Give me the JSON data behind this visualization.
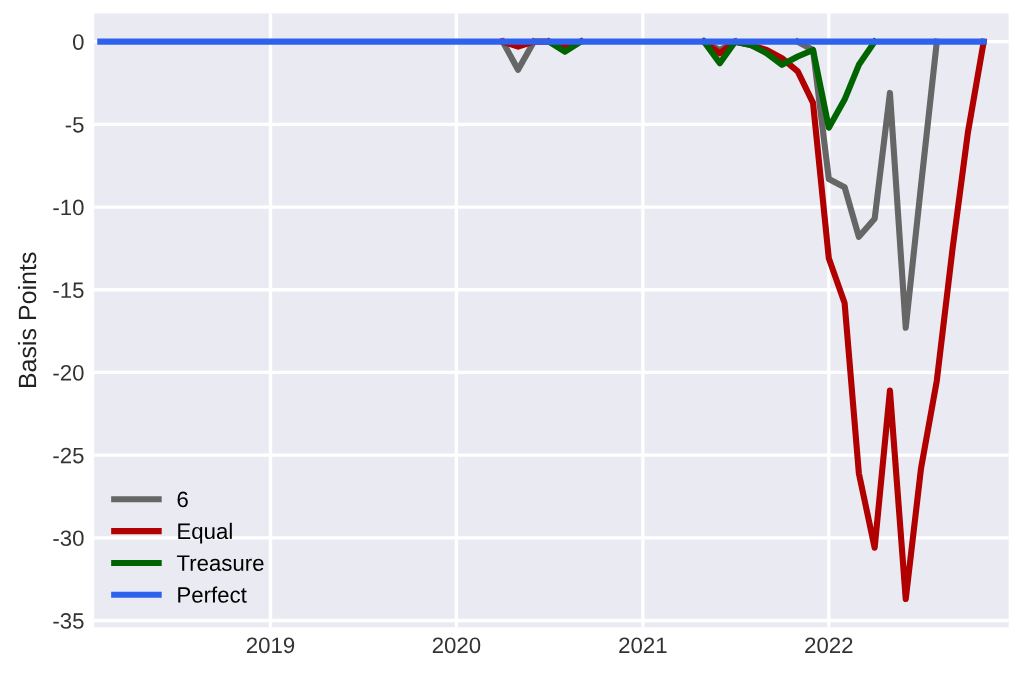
{
  "chart_data": {
    "type": "line",
    "ylabel": "Basis Points",
    "x": [
      "2018-02",
      "2018-03",
      "2018-04",
      "2018-05",
      "2018-06",
      "2018-07",
      "2018-08",
      "2018-09",
      "2018-10",
      "2018-11",
      "2018-12",
      "2019-01",
      "2019-02",
      "2019-03",
      "2019-04",
      "2019-05",
      "2019-06",
      "2019-07",
      "2019-08",
      "2019-09",
      "2019-10",
      "2019-11",
      "2019-12",
      "2020-01",
      "2020-02",
      "2020-03",
      "2020-04",
      "2020-05",
      "2020-06",
      "2020-07",
      "2020-08",
      "2020-09",
      "2020-10",
      "2020-11",
      "2020-12",
      "2021-01",
      "2021-02",
      "2021-03",
      "2021-04",
      "2021-05",
      "2021-06",
      "2021-07",
      "2021-08",
      "2021-09",
      "2021-10",
      "2021-11",
      "2021-12",
      "2022-01",
      "2022-02",
      "2022-03",
      "2022-04",
      "2022-05",
      "2022-06",
      "2022-07",
      "2022-08",
      "2022-09",
      "2022-10",
      "2022-11"
    ],
    "series": [
      {
        "name": "6",
        "color": "#666666",
        "values": [
          null,
          null,
          null,
          null,
          null,
          null,
          null,
          null,
          null,
          null,
          null,
          null,
          null,
          null,
          null,
          null,
          null,
          null,
          null,
          null,
          null,
          null,
          null,
          null,
          null,
          null,
          0,
          -1.7,
          0,
          null,
          null,
          null,
          null,
          null,
          null,
          null,
          null,
          null,
          null,
          0,
          -0.5,
          0,
          null,
          null,
          null,
          0,
          -0.5,
          -8.3,
          -8.8,
          -11.8,
          -10.7,
          -3.1,
          -17.3,
          -8.7,
          0,
          null,
          null,
          null
        ]
      },
      {
        "name": "Equal",
        "color": "#b00000",
        "values": [
          null,
          null,
          null,
          null,
          null,
          null,
          null,
          null,
          null,
          null,
          null,
          null,
          null,
          null,
          null,
          null,
          null,
          null,
          null,
          null,
          null,
          null,
          null,
          null,
          null,
          null,
          0,
          -0.3,
          0,
          0,
          -0.3,
          0,
          null,
          null,
          null,
          null,
          null,
          null,
          null,
          0,
          -0.7,
          0,
          -0.2,
          -0.5,
          -1.0,
          -1.8,
          -3.7,
          -13.1,
          -15.8,
          -26.1,
          -30.6,
          -21.1,
          -33.7,
          -25.8,
          -20.5,
          -12.5,
          -5.5,
          0
        ]
      },
      {
        "name": "Treasure",
        "color": "#006400",
        "values": [
          null,
          null,
          null,
          null,
          null,
          null,
          null,
          null,
          null,
          null,
          null,
          null,
          null,
          null,
          null,
          null,
          null,
          null,
          null,
          null,
          null,
          null,
          null,
          null,
          null,
          null,
          null,
          null,
          null,
          0,
          -0.6,
          0,
          null,
          null,
          null,
          null,
          null,
          null,
          null,
          0,
          -1.3,
          0,
          -0.2,
          -0.7,
          -1.4,
          -0.9,
          -0.5,
          -5.2,
          -3.5,
          -1.4,
          0,
          null,
          null,
          null,
          null,
          null,
          null,
          null
        ]
      },
      {
        "name": "Perfect",
        "color": "#2e62ee",
        "values": [
          0,
          0,
          0,
          0,
          0,
          0,
          0,
          0,
          0,
          0,
          0,
          0,
          0,
          0,
          0,
          0,
          0,
          0,
          0,
          0,
          0,
          0,
          0,
          0,
          0,
          0,
          0,
          0,
          0,
          0,
          0,
          0,
          0,
          0,
          0,
          0,
          0,
          0,
          0,
          0,
          0,
          0,
          0,
          0,
          0,
          0,
          0,
          0,
          0,
          0,
          0,
          0,
          0,
          0,
          0,
          0,
          0,
          0
        ]
      }
    ],
    "xlim": [
      "2018-01-20",
      "2022-12-20"
    ],
    "xticks": [
      {
        "value": "2019-01-01",
        "label": "2019"
      },
      {
        "value": "2020-01-01",
        "label": "2020"
      },
      {
        "value": "2021-01-01",
        "label": "2021"
      },
      {
        "value": "2022-01-01",
        "label": "2022"
      }
    ],
    "ylim": [
      -35.4,
      1.7
    ],
    "yticks": [
      0,
      -5,
      -10,
      -15,
      -20,
      -25,
      -30,
      -35
    ],
    "grid": true,
    "legend": "bottom left",
    "marker": "none",
    "line_style": "solid"
  }
}
